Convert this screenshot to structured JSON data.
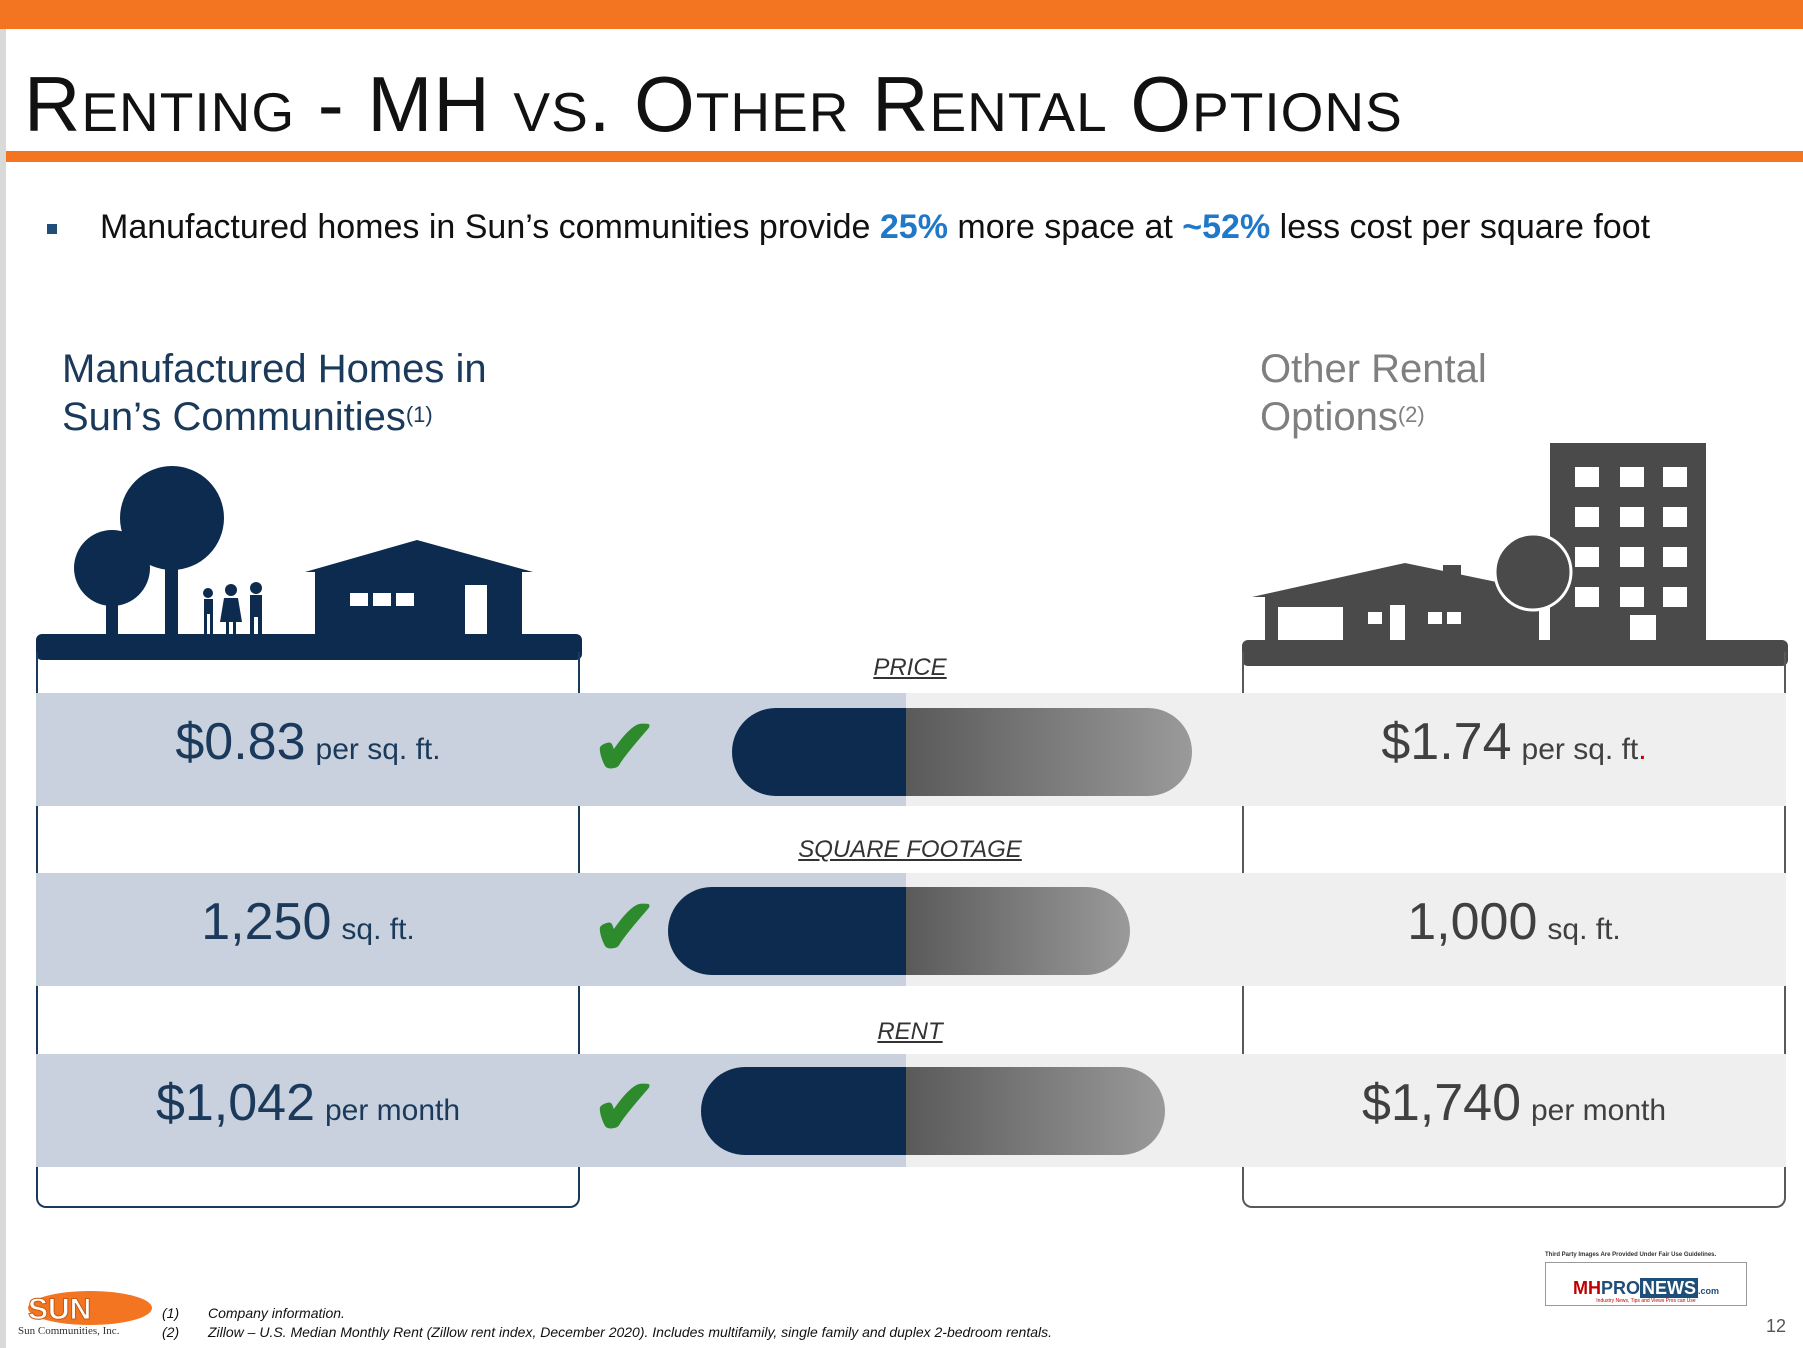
{
  "slide": {
    "title": "Renting - MH vs. Other Rental Options",
    "bullet": {
      "prefix": "Manufactured homes in Sun’s communities provide ",
      "space_pct": "25%",
      "middle": " more space at ",
      "cost_pct": "~52%",
      "suffix": " less cost per square foot"
    },
    "left_heading": {
      "line1": "Manufactured Homes in",
      "line2": "Sun’s Communities",
      "note": "(1)"
    },
    "right_heading": {
      "line1": "Other Rental",
      "line2": "Options",
      "note": "(2)"
    },
    "comparisons": [
      {
        "label": "PRICE",
        "left_value": "$0.83",
        "left_unit": "per sq. ft.",
        "right_value": "$1.74",
        "right_unit": "per sq. ft"
      },
      {
        "label": "SQUARE FOOTAGE",
        "left_value": "1,250",
        "left_unit": "sq. ft.",
        "right_value": "1,000",
        "right_unit": "sq. ft."
      },
      {
        "label": "RENT",
        "left_value": "$1,042",
        "left_unit": "per month",
        "right_value": "$1,740",
        "right_unit": "per month"
      }
    ],
    "footnotes": [
      {
        "num": "(1)",
        "text": "Company information."
      },
      {
        "num": "(2)",
        "text": "Zillow – U.S. Median Monthly Rent (Zillow rent index, December 2020). Includes multifamily, single family and duplex 2-bedroom rentals."
      }
    ],
    "logo": {
      "name": "SUN",
      "company": "Sun Communities, Inc."
    },
    "watermark": {
      "note": "Third Party Images Are Provided Under Fair Use Guidelines.",
      "brand_a": "MH",
      "brand_b": "PRO",
      "brand_c": "NEWS",
      "brand_d": ".com",
      "tagline": "Industry News, Tips and Views Pros can Use"
    },
    "page_number": "12",
    "colors": {
      "accent": "#f37421",
      "navy": "#0d2b4e",
      "highlight": "#1f78c8",
      "check": "#2d8a2d"
    }
  }
}
